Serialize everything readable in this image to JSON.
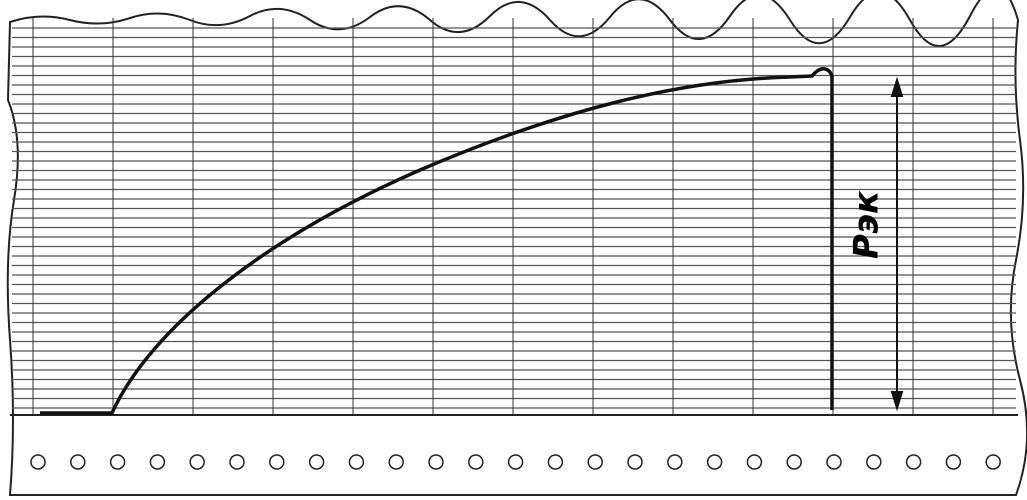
{
  "diagram": {
    "label": "Рэк"
  }
}
